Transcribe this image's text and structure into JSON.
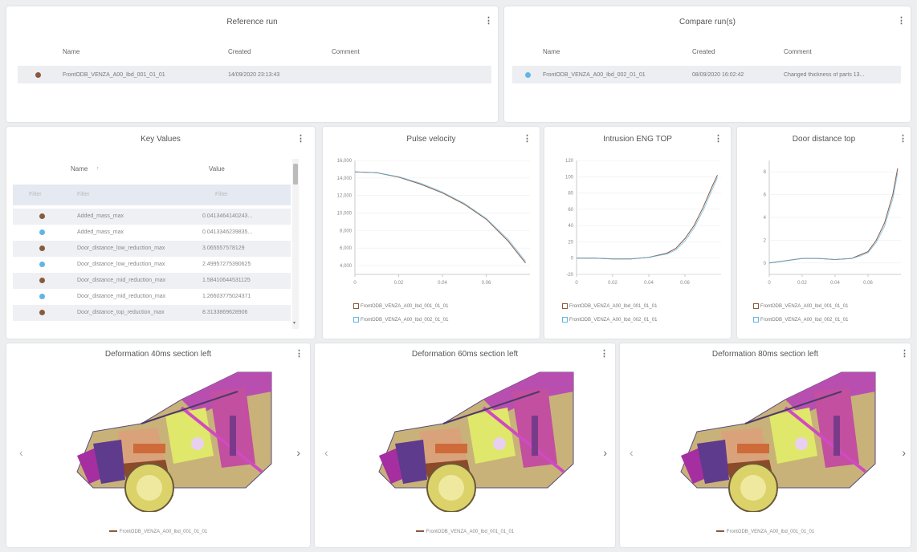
{
  "reference_run": {
    "title": "Reference run",
    "columns": [
      "Name",
      "Created",
      "Comment"
    ],
    "row": {
      "name": "FrontODB_VENZA_A00_Ibd_001_01_01",
      "created": "14/09/2020 23:13:43",
      "comment": ""
    }
  },
  "compare_runs": {
    "title": "Compare run(s)",
    "columns": [
      "Name",
      "Created",
      "Comment"
    ],
    "row": {
      "name": "FrontODB_VENZA_A00_Ibd_002_01_01",
      "created": "08/09/2020 16:02:42",
      "comment": "Changed thickness of parts 13..."
    }
  },
  "key_values": {
    "title": "Key Values",
    "col_name": "Name",
    "col_value": "Value",
    "filter_left": "Filter",
    "filter_name": "Filter",
    "filter_value": "Filter",
    "rows": [
      {
        "run": "ref",
        "name": "Added_mass_max",
        "value": "0.0413464140243..."
      },
      {
        "run": "cmp",
        "name": "Added_mass_max",
        "value": "0.0413346239835..."
      },
      {
        "run": "ref",
        "name": "Door_distance_low_reduction_max",
        "value": "3.065557578129"
      },
      {
        "run": "cmp",
        "name": "Door_distance_low_reduction_max",
        "value": "2.49957275390625"
      },
      {
        "run": "ref",
        "name": "Door_distance_mid_reduction_max",
        "value": "1.58410644531125"
      },
      {
        "run": "cmp",
        "name": "Door_distance_mid_reduction_max",
        "value": "1.26603775024371"
      },
      {
        "run": "ref",
        "name": "Door_distance_top_reduction_max",
        "value": "8.3133869628906"
      }
    ]
  },
  "charts": {
    "pulse": {
      "title": "Pulse velocity",
      "legend": [
        "FrontODB_VENZA_A00_Ibd_001_01_01",
        "FrontODB_VENZA_A00_Ibd_002_01_01"
      ]
    },
    "intrusion": {
      "title": "Intrusion ENG TOP",
      "legend": [
        "FrontODB_VENZA_A00_Ibd_001_01_01",
        "FrontODB_VENZA_A00_Ibd_002_01_01"
      ]
    },
    "door": {
      "title": "Door distance top",
      "legend": [
        "FrontODB_VENZA_A00_Ibd_001_01_01",
        "FrontODB_VENZA_A00_Ibd_002_01_01"
      ]
    }
  },
  "chart_data": [
    {
      "type": "line",
      "title": "Pulse velocity",
      "xlim": [
        0,
        0.08
      ],
      "ylim": [
        3000,
        16000
      ],
      "xticks": [
        "0",
        "0.02",
        "0.04",
        "0.06"
      ],
      "yticks": [
        "16,000",
        "14,000",
        "12,000",
        "10,000",
        "8,000",
        "6,000",
        "4,000"
      ],
      "series": [
        {
          "name": "FrontODB_VENZA_A00_Ibd_001_01_01",
          "x": [
            0,
            0.01,
            0.02,
            0.03,
            0.04,
            0.05,
            0.06,
            0.07,
            0.078
          ],
          "y": [
            14700,
            14600,
            14100,
            13300,
            12300,
            11000,
            9300,
            6800,
            4300
          ]
        },
        {
          "name": "FrontODB_VENZA_A00_Ibd_002_01_01",
          "x": [
            0,
            0.01,
            0.02,
            0.03,
            0.04,
            0.05,
            0.06,
            0.07,
            0.078
          ],
          "y": [
            14700,
            14600,
            14150,
            13400,
            12400,
            11100,
            9400,
            7000,
            4500
          ]
        }
      ]
    },
    {
      "type": "line",
      "title": "Intrusion ENG TOP",
      "xlim": [
        0,
        0.08
      ],
      "ylim": [
        -20,
        120
      ],
      "xticks": [
        "0",
        "0.02",
        "0.04",
        "0.06"
      ],
      "yticks": [
        "120",
        "100",
        "80",
        "60",
        "40",
        "20",
        "0",
        "-20"
      ],
      "series": [
        {
          "name": "FrontODB_VENZA_A00_Ibd_001_01_01",
          "x": [
            0,
            0.01,
            0.02,
            0.03,
            0.04,
            0.05,
            0.055,
            0.06,
            0.065,
            0.07,
            0.075,
            0.078
          ],
          "y": [
            0,
            0,
            -1,
            -1,
            1,
            6,
            12,
            24,
            40,
            62,
            88,
            102
          ]
        },
        {
          "name": "FrontODB_VENZA_A00_Ibd_002_01_01",
          "x": [
            0,
            0.01,
            0.02,
            0.03,
            0.04,
            0.05,
            0.055,
            0.06,
            0.065,
            0.07,
            0.075,
            0.078
          ],
          "y": [
            0,
            0,
            -1,
            -1,
            1,
            5,
            10,
            21,
            37,
            58,
            84,
            99
          ]
        }
      ]
    },
    {
      "type": "line",
      "title": "Door distance top",
      "xlim": [
        0,
        0.08
      ],
      "ylim": [
        -1,
        9
      ],
      "xticks": [
        "0",
        "0.02",
        "0.04",
        "0.06"
      ],
      "yticks": [
        "8",
        "6",
        "4",
        "2",
        "0"
      ],
      "series": [
        {
          "name": "FrontODB_VENZA_A00_Ibd_001_01_01",
          "x": [
            0,
            0.01,
            0.02,
            0.03,
            0.04,
            0.05,
            0.055,
            0.06,
            0.065,
            0.07,
            0.075,
            0.078
          ],
          "y": [
            0,
            0.2,
            0.4,
            0.4,
            0.3,
            0.4,
            0.7,
            1.0,
            2.0,
            3.5,
            6.0,
            8.3
          ]
        },
        {
          "name": "FrontODB_VENZA_A00_Ibd_002_01_01",
          "x": [
            0,
            0.01,
            0.02,
            0.03,
            0.04,
            0.05,
            0.055,
            0.06,
            0.065,
            0.07,
            0.075,
            0.078
          ],
          "y": [
            0,
            0.2,
            0.4,
            0.4,
            0.3,
            0.4,
            0.6,
            0.9,
            1.8,
            3.2,
            5.6,
            7.9
          ]
        }
      ]
    }
  ],
  "deformation": [
    {
      "title": "Deformation 40ms section left",
      "caption": "FrontODB_VENZA_A00_Ibd_001_01_01"
    },
    {
      "title": "Deformation 60ms section left",
      "caption": "FrontODB_VENZA_A00_Ibd_001_01_01"
    },
    {
      "title": "Deformation 80ms section left",
      "caption": "FrontODB_VENZA_A00_Ibd_001_01_01"
    }
  ],
  "icons": {
    "menu": "kebab-menu-icon",
    "prev": "chevron-left-icon",
    "next": "chevron-right-icon"
  },
  "colors": {
    "ref": "#8a5a3c",
    "cmp": "#5fb6e6"
  }
}
